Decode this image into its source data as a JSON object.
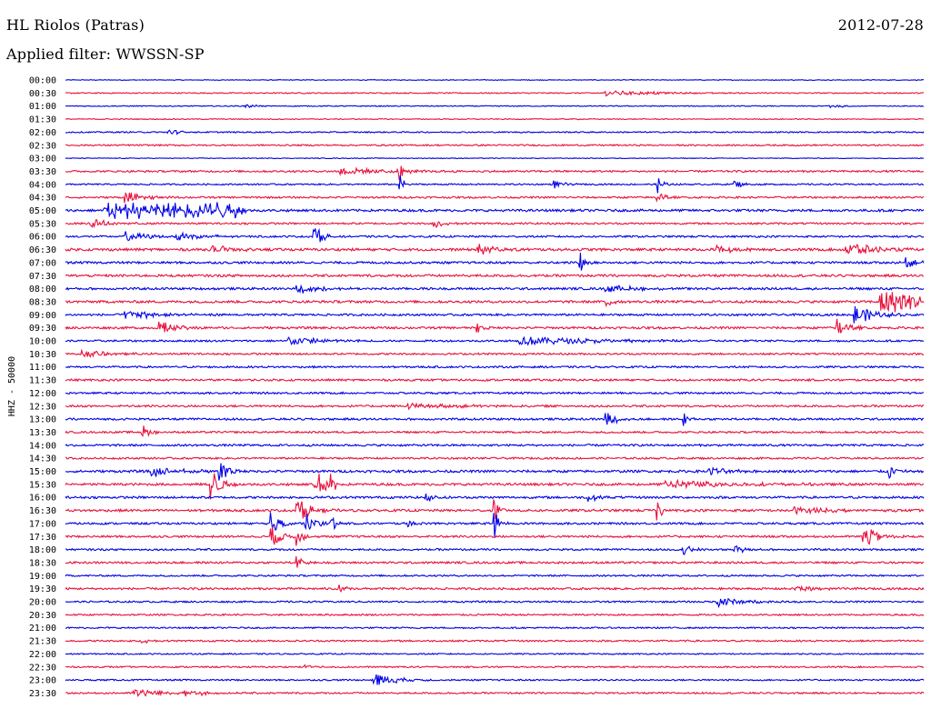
{
  "header": {
    "station": "HL Riolos (Patras)",
    "date": "2012-07-28",
    "filter": "Applied filter: WWSSN-SP"
  },
  "chart_data": {
    "type": "line",
    "kind": "helicorder",
    "ylabel": "HHZ - 50000",
    "row_labels": [
      "00:00",
      "00:30",
      "01:00",
      "01:30",
      "02:00",
      "02:30",
      "03:00",
      "03:30",
      "04:00",
      "04:30",
      "05:00",
      "05:30",
      "06:00",
      "06:30",
      "07:00",
      "07:30",
      "08:00",
      "08:30",
      "09:00",
      "09:30",
      "10:00",
      "10:30",
      "11:00",
      "11:30",
      "12:00",
      "12:30",
      "13:00",
      "13:30",
      "14:00",
      "14:30",
      "15:00",
      "15:30",
      "16:00",
      "16:30",
      "17:00",
      "17:30",
      "18:00",
      "18:30",
      "19:00",
      "19:30",
      "20:00",
      "20:30",
      "21:00",
      "21:30",
      "22:00",
      "22:30",
      "23:00",
      "23:30"
    ],
    "colors": [
      "#0000e6",
      "#e8103c"
    ],
    "row_noise": [
      0.4,
      0.6,
      0.5,
      0.5,
      0.7,
      0.8,
      0.4,
      1.0,
      0.8,
      1.0,
      1.3,
      1.0,
      1.0,
      1.4,
      1.2,
      1.3,
      1.2,
      1.3,
      1.1,
      1.2,
      1.0,
      1.0,
      1.0,
      1.1,
      1.0,
      1.1,
      1.1,
      1.0,
      1.1,
      1.0,
      1.3,
      1.3,
      1.2,
      1.3,
      1.1,
      1.1,
      1.0,
      1.1,
      0.9,
      1.1,
      0.9,
      0.9,
      0.8,
      0.9,
      0.7,
      0.8,
      0.8,
      0.9
    ],
    "events": [
      {
        "row": 1,
        "t": 0.63,
        "amp": 3,
        "dur": 0.06
      },
      {
        "row": 2,
        "t": 0.21,
        "amp": 3,
        "dur": 0.01
      },
      {
        "row": 2,
        "t": 0.89,
        "amp": 2,
        "dur": 0.02
      },
      {
        "row": 4,
        "t": 0.12,
        "amp": 4,
        "dur": 0.01
      },
      {
        "row": 7,
        "t": 0.32,
        "amp": 4,
        "dur": 0.06
      },
      {
        "row": 7,
        "t": 0.39,
        "amp": 10,
        "dur": 0.004
      },
      {
        "row": 8,
        "t": 0.39,
        "amp": 10,
        "dur": 0.005
      },
      {
        "row": 8,
        "t": 0.57,
        "amp": 4,
        "dur": 0.01
      },
      {
        "row": 8,
        "t": 0.69,
        "amp": 10,
        "dur": 0.006
      },
      {
        "row": 8,
        "t": 0.78,
        "amp": 5,
        "dur": 0.01
      },
      {
        "row": 9,
        "t": 0.07,
        "amp": 6,
        "dur": 0.02
      },
      {
        "row": 9,
        "t": 0.69,
        "amp": 10,
        "dur": 0.006
      },
      {
        "row": 10,
        "t": 0.04,
        "amp": 10,
        "dur": 0.17,
        "burst": true
      },
      {
        "row": 11,
        "t": 0.03,
        "amp": 5,
        "dur": 0.02
      },
      {
        "row": 11,
        "t": 0.43,
        "amp": 5,
        "dur": 0.01
      },
      {
        "row": 12,
        "t": 0.07,
        "amp": 5,
        "dur": 0.03
      },
      {
        "row": 12,
        "t": 0.13,
        "amp": 5,
        "dur": 0.03
      },
      {
        "row": 12,
        "t": 0.29,
        "amp": 14,
        "dur": 0.008
      },
      {
        "row": 13,
        "t": 0.17,
        "amp": 5,
        "dur": 0.02
      },
      {
        "row": 13,
        "t": 0.48,
        "amp": 6,
        "dur": 0.02
      },
      {
        "row": 13,
        "t": 0.76,
        "amp": 5,
        "dur": 0.02
      },
      {
        "row": 13,
        "t": 0.91,
        "amp": 10,
        "dur": 0.025
      },
      {
        "row": 14,
        "t": 0.6,
        "amp": 14,
        "dur": 0.005
      },
      {
        "row": 14,
        "t": 0.98,
        "amp": 6,
        "dur": 0.01
      },
      {
        "row": 16,
        "t": 0.27,
        "amp": 5,
        "dur": 0.03
      },
      {
        "row": 16,
        "t": 0.63,
        "amp": 5,
        "dur": 0.03
      },
      {
        "row": 17,
        "t": 0.63,
        "amp": 9,
        "dur": 0.006
      },
      {
        "row": 17,
        "t": 0.95,
        "amp": 16,
        "dur": 0.05
      },
      {
        "row": 18,
        "t": 0.07,
        "amp": 5,
        "dur": 0.04
      },
      {
        "row": 18,
        "t": 0.92,
        "amp": 12,
        "dur": 0.02
      },
      {
        "row": 19,
        "t": 0.11,
        "amp": 7,
        "dur": 0.02
      },
      {
        "row": 19,
        "t": 0.48,
        "amp": 7,
        "dur": 0.01
      },
      {
        "row": 19,
        "t": 0.9,
        "amp": 12,
        "dur": 0.01
      },
      {
        "row": 20,
        "t": 0.26,
        "amp": 5,
        "dur": 0.04
      },
      {
        "row": 20,
        "t": 0.53,
        "amp": 5,
        "dur": 0.08
      },
      {
        "row": 21,
        "t": 0.02,
        "amp": 4,
        "dur": 0.03
      },
      {
        "row": 25,
        "t": 0.4,
        "amp": 3,
        "dur": 0.06
      },
      {
        "row": 26,
        "t": 0.63,
        "amp": 10,
        "dur": 0.01
      },
      {
        "row": 26,
        "t": 0.72,
        "amp": 8,
        "dur": 0.006
      },
      {
        "row": 27,
        "t": 0.09,
        "amp": 8,
        "dur": 0.008
      },
      {
        "row": 30,
        "t": 0.1,
        "amp": 6,
        "dur": 0.03
      },
      {
        "row": 30,
        "t": 0.18,
        "amp": 16,
        "dur": 0.01
      },
      {
        "row": 30,
        "t": 0.75,
        "amp": 5,
        "dur": 0.02
      },
      {
        "row": 30,
        "t": 0.96,
        "amp": 10,
        "dur": 0.006
      },
      {
        "row": 31,
        "t": 0.17,
        "amp": 18,
        "dur": 0.01
      },
      {
        "row": 31,
        "t": 0.29,
        "amp": 13,
        "dur": 0.025,
        "burst": true
      },
      {
        "row": 31,
        "t": 0.7,
        "amp": 5,
        "dur": 0.07
      },
      {
        "row": 32,
        "t": 0.42,
        "amp": 5,
        "dur": 0.01
      },
      {
        "row": 32,
        "t": 0.61,
        "amp": 5,
        "dur": 0.01
      },
      {
        "row": 33,
        "t": 0.27,
        "amp": 14,
        "dur": 0.015
      },
      {
        "row": 33,
        "t": 0.5,
        "amp": 16,
        "dur": 0.005
      },
      {
        "row": 33,
        "t": 0.69,
        "amp": 12,
        "dur": 0.005
      },
      {
        "row": 33,
        "t": 0.85,
        "amp": 4,
        "dur": 0.04
      },
      {
        "row": 34,
        "t": 0.24,
        "amp": 12,
        "dur": 0.01
      },
      {
        "row": 34,
        "t": 0.28,
        "amp": 12,
        "dur": 0.01
      },
      {
        "row": 34,
        "t": 0.31,
        "amp": 10,
        "dur": 0.005
      },
      {
        "row": 34,
        "t": 0.4,
        "amp": 5,
        "dur": 0.006
      },
      {
        "row": 34,
        "t": 0.5,
        "amp": 14,
        "dur": 0.006
      },
      {
        "row": 35,
        "t": 0.24,
        "amp": 14,
        "dur": 0.01
      },
      {
        "row": 35,
        "t": 0.27,
        "amp": 12,
        "dur": 0.006
      },
      {
        "row": 35,
        "t": 0.93,
        "amp": 14,
        "dur": 0.015
      },
      {
        "row": 36,
        "t": 0.72,
        "amp": 6,
        "dur": 0.01
      },
      {
        "row": 36,
        "t": 0.78,
        "amp": 5,
        "dur": 0.01
      },
      {
        "row": 37,
        "t": 0.27,
        "amp": 8,
        "dur": 0.006
      },
      {
        "row": 39,
        "t": 0.32,
        "amp": 5,
        "dur": 0.006
      },
      {
        "row": 39,
        "t": 0.85,
        "amp": 4,
        "dur": 0.02
      },
      {
        "row": 40,
        "t": 0.76,
        "amp": 6,
        "dur": 0.025
      },
      {
        "row": 43,
        "t": 0.09,
        "amp": 4,
        "dur": 0.005
      },
      {
        "row": 45,
        "t": 0.28,
        "amp": 3,
        "dur": 0.01
      },
      {
        "row": 46,
        "t": 0.36,
        "amp": 7,
        "dur": 0.025
      },
      {
        "row": 47,
        "t": 0.08,
        "amp": 5,
        "dur": 0.03
      },
      {
        "row": 47,
        "t": 0.14,
        "amp": 4,
        "dur": 0.02
      }
    ]
  }
}
